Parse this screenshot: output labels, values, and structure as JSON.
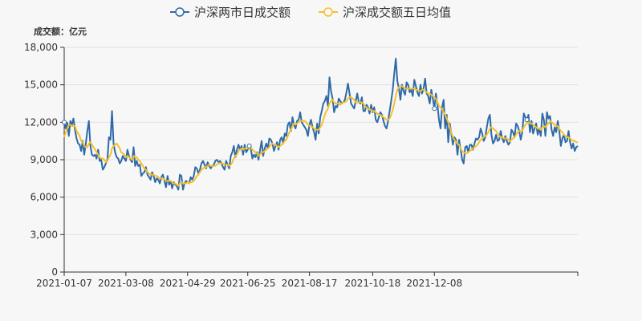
{
  "chart_data": {
    "type": "line",
    "unit_label": "成交额：亿元",
    "ylim": [
      0,
      18000
    ],
    "y_ticks": [
      "0",
      "3,000",
      "6,000",
      "9,000",
      "12,000",
      "15,000",
      "18,000"
    ],
    "x_tick_labels": [
      "2021-01-07",
      "2021-03-08",
      "2021-04-29",
      "2021-06-25",
      "2021-08-17",
      "2021-10-18",
      "2021-12-08"
    ],
    "x_tick_indices": [
      0,
      40,
      80,
      119,
      159,
      200,
      240
    ],
    "grid": "horizontal",
    "legend_position": "top-center",
    "series": [
      {
        "name": "沪深两市日成交额",
        "color": "#2f6aa8",
        "values": [
          12000,
          11500,
          11950,
          10900,
          12100,
          11800,
          12300,
          11400,
          10700,
          10300,
          10200,
          9700,
          10500,
          9400,
          10300,
          11300,
          12100,
          10100,
          9400,
          9300,
          9400,
          9100,
          9800,
          8900,
          9000,
          8200,
          8400,
          8700,
          9000,
          10800,
          10600,
          12900,
          10300,
          9600,
          9200,
          9100,
          8700,
          8900,
          9300,
          9100,
          8900,
          9800,
          9300,
          9000,
          8800,
          10000,
          8500,
          8900,
          8500,
          8600,
          7700,
          7900,
          8000,
          8400,
          7800,
          7600,
          7400,
          8000,
          7700,
          7200,
          7500,
          7400,
          7100,
          7600,
          7800,
          7300,
          6800,
          7700,
          7000,
          7300,
          6700,
          7200,
          7000,
          6900,
          6600,
          7800,
          7700,
          6600,
          7100,
          7300,
          7200,
          7100,
          7600,
          7400,
          7700,
          8400,
          8300,
          7900,
          8200,
          8700,
          8900,
          8600,
          8300,
          8800,
          8500,
          8300,
          8500,
          8600,
          8900,
          9000,
          8800,
          8900,
          8700,
          8400,
          8200,
          8900,
          8600,
          8300,
          9300,
          9600,
          10100,
          9200,
          9800,
          10200,
          9800,
          10100,
          9400,
          10200,
          9600,
          9800,
          10100,
          9900,
          9100,
          9400,
          9200,
          9600,
          9000,
          9800,
          10500,
          9300,
          9900,
          10300,
          9900,
          10700,
          10600,
          10300,
          9700,
          10100,
          10400,
          9800,
          10600,
          10800,
          10300,
          11100,
          10900,
          11800,
          12000,
          11300,
          12400,
          11800,
          11500,
          12100,
          12200,
          12800,
          12000,
          11800,
          11600,
          11400,
          10900,
          11800,
          12200,
          11600,
          11200,
          10600,
          11900,
          11100,
          12400,
          12900,
          13500,
          13700,
          14100,
          13300,
          15600,
          14500,
          13900,
          12800,
          13300,
          13200,
          13900,
          13700,
          13500,
          13600,
          13800,
          14400,
          15100,
          14300,
          13500,
          13300,
          13100,
          13700,
          14300,
          13600,
          13500,
          14000,
          12900,
          12900,
          13400,
          13200,
          12700,
          13400,
          12800,
          13200,
          12200,
          12000,
          12400,
          12800,
          12600,
          12100,
          11700,
          11500,
          12100,
          12900,
          13700,
          14600,
          15900,
          17100,
          15300,
          14700,
          13800,
          15000,
          14500,
          14200,
          15200,
          15000,
          14400,
          14600,
          14100,
          15400,
          14900,
          14400,
          14100,
          15000,
          14300,
          14700,
          15500,
          14300,
          14100,
          13500,
          14600,
          13900,
          13100,
          14300,
          13400,
          12200,
          11500,
          13200,
          13800,
          11500,
          12600,
          10400,
          11900,
          11100,
          10200,
          10800,
          10600,
          9400,
          10600,
          9900,
          9000,
          8700,
          10000,
          10100,
          9600,
          10200,
          10200,
          9800,
          10300,
          10700,
          10600,
          10800,
          11500,
          11100,
          10500,
          10800,
          11600,
          12300,
          12600,
          11000,
          10300,
          10500,
          11000,
          10500,
          10600,
          11300,
          10700,
          10400,
          10900,
          10500,
          10200,
          10400,
          11400,
          11200,
          10800,
          11900,
          11700,
          11300,
          10600,
          11200,
          12700,
          12400,
          12200,
          12600,
          11200,
          12100,
          11100,
          11500,
          11900,
          11000,
          11500,
          10900,
          12700,
          12200,
          10900,
          12800,
          12300,
          12500,
          11400,
          10900,
          11600,
          11200,
          12100,
          11300,
          10100,
          10700,
          11000,
          10400,
          10500,
          11300,
          10400,
          9900,
          10300,
          9700,
          10000,
          10100
        ]
      },
      {
        "name": "沪深成交额五日均值",
        "color": "#f5c02a",
        "values": [
          10800,
          11200,
          11500,
          11800,
          11800,
          11700,
          11700,
          11700,
          11300,
          11100,
          10900,
          10500,
          10400,
          10100,
          10000,
          10000,
          10300,
          10400,
          10200,
          10000,
          9800,
          9600,
          9400,
          9200,
          9100,
          9100,
          9000,
          8800,
          8900,
          9200,
          9400,
          9900,
          10100,
          10200,
          10300,
          10100,
          9900,
          9600,
          9500,
          9400,
          9200,
          9300,
          9200,
          9100,
          9000,
          9300,
          9200,
          9200,
          9000,
          8900,
          8700,
          8500,
          8300,
          8200,
          8000,
          7900,
          7800,
          7800,
          7800,
          7700,
          7700,
          7600,
          7500,
          7500,
          7500,
          7400,
          7300,
          7300,
          7300,
          7300,
          7200,
          7100,
          7100,
          7000,
          6900,
          7100,
          7200,
          7100,
          7100,
          7100,
          7200,
          7100,
          7200,
          7200,
          7300,
          7500,
          7700,
          7800,
          8000,
          8200,
          8300,
          8400,
          8400,
          8500,
          8600,
          8500,
          8500,
          8500,
          8500,
          8600,
          8700,
          8700,
          8700,
          8700,
          8600,
          8600,
          8600,
          8500,
          8600,
          8800,
          9100,
          9300,
          9400,
          9700,
          9800,
          9900,
          9800,
          9900,
          9900,
          9900,
          9900,
          10000,
          9800,
          9700,
          9600,
          9500,
          9300,
          9400,
          9600,
          9600,
          9700,
          9800,
          9900,
          10000,
          10200,
          10300,
          10200,
          10200,
          10100,
          10000,
          10100,
          10200,
          10300,
          10500,
          10600,
          10900,
          11200,
          11400,
          11700,
          11900,
          11800,
          11900,
          12000,
          12100,
          12100,
          12100,
          12100,
          12000,
          11800,
          11700,
          11700,
          11600,
          11500,
          11400,
          11400,
          11400,
          11600,
          11800,
          12200,
          12600,
          12900,
          13100,
          13500,
          13700,
          13800,
          13600,
          13500,
          13500,
          13500,
          13400,
          13500,
          13600,
          13600,
          13700,
          13900,
          14000,
          14000,
          13900,
          13800,
          13600,
          13600,
          13600,
          13600,
          13600,
          13500,
          13300,
          13200,
          13100,
          13000,
          13000,
          12900,
          12900,
          12800,
          12700,
          12600,
          12600,
          12500,
          12400,
          12300,
          12200,
          12200,
          12300,
          12600,
          13000,
          13500,
          14100,
          14600,
          14800,
          14900,
          14900,
          14800,
          14700,
          14700,
          14700,
          14700,
          14700,
          14700,
          14700,
          14600,
          14600,
          14500,
          14500,
          14600,
          14600,
          14500,
          14400,
          14300,
          14300,
          14200,
          14100,
          14000,
          13900,
          13600,
          13300,
          13200,
          13100,
          12800,
          12600,
          12300,
          12000,
          11600,
          11200,
          10800,
          10600,
          10400,
          10300,
          10200,
          9900,
          9700,
          9600,
          9500,
          9500,
          9600,
          9700,
          9800,
          9900,
          10000,
          10100,
          10200,
          10400,
          10600,
          10700,
          10800,
          10900,
          11000,
          11200,
          11500,
          11600,
          11500,
          11400,
          11300,
          11100,
          10900,
          10800,
          10800,
          10700,
          10700,
          10700,
          10600,
          10500,
          10600,
          10700,
          10800,
          11000,
          11200,
          11300,
          11300,
          11300,
          11600,
          11800,
          11900,
          12000,
          11900,
          11900,
          11800,
          11700,
          11600,
          11500,
          11500,
          11400,
          11600,
          11700,
          11600,
          11800,
          11900,
          12100,
          12000,
          11900,
          11800,
          11700,
          11700,
          11500,
          11300,
          11200,
          11000,
          10900,
          10800,
          10800,
          10700,
          10600,
          10500,
          10500,
          10400,
          10400
        ]
      }
    ]
  }
}
